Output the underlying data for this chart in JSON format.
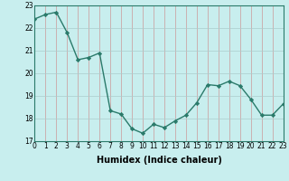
{
  "x": [
    0,
    1,
    2,
    3,
    4,
    5,
    6,
    7,
    8,
    9,
    10,
    11,
    12,
    13,
    14,
    15,
    16,
    17,
    18,
    19,
    20,
    21,
    22,
    23
  ],
  "y": [
    22.4,
    22.6,
    22.7,
    21.8,
    20.6,
    20.7,
    20.9,
    18.35,
    18.2,
    17.55,
    17.35,
    17.75,
    17.6,
    17.9,
    18.15,
    18.7,
    19.5,
    19.45,
    19.65,
    19.45,
    18.85,
    18.15,
    18.15,
    18.65
  ],
  "line_color": "#2a7a6a",
  "marker": "D",
  "marker_size": 2.2,
  "bg_color": "#c8eeee",
  "grid_color": "#b0cccc",
  "grid_color_major": "#cc9999",
  "xlabel": "Humidex (Indice chaleur)",
  "ylim": [
    17,
    23
  ],
  "xlim": [
    0,
    23
  ],
  "yticks": [
    17,
    18,
    19,
    20,
    21,
    22,
    23
  ],
  "xticks": [
    0,
    1,
    2,
    3,
    4,
    5,
    6,
    7,
    8,
    9,
    10,
    11,
    12,
    13,
    14,
    15,
    16,
    17,
    18,
    19,
    20,
    21,
    22,
    23
  ],
  "tick_fontsize": 5.5,
  "xlabel_fontsize": 7.0,
  "linewidth": 1.0
}
